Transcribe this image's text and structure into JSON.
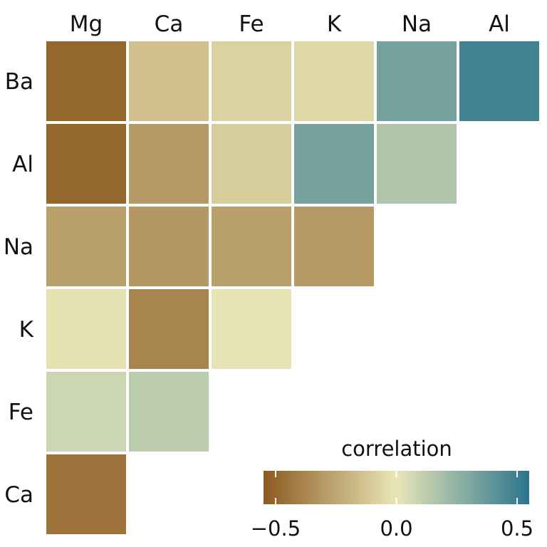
{
  "chart_data": {
    "type": "heatmap",
    "title": "",
    "columns": [
      "Mg",
      "Ca",
      "Fe",
      "K",
      "Na",
      "Al"
    ],
    "rows": [
      "Ba",
      "Al",
      "Na",
      "K",
      "Fe",
      "Ca"
    ],
    "layout": "lower-triangle",
    "cells": [
      {
        "row": "Ba",
        "col": "Mg",
        "value": -0.5
      },
      {
        "row": "Ba",
        "col": "Ca",
        "value": -0.15
      },
      {
        "row": "Ba",
        "col": "Fe",
        "value": -0.08
      },
      {
        "row": "Ba",
        "col": "K",
        "value": -0.06
      },
      {
        "row": "Ba",
        "col": "Na",
        "value": 0.33
      },
      {
        "row": "Ba",
        "col": "Al",
        "value": 0.48
      },
      {
        "row": "Al",
        "col": "Mg",
        "value": -0.5
      },
      {
        "row": "Al",
        "col": "Ca",
        "value": -0.3
      },
      {
        "row": "Al",
        "col": "Fe",
        "value": -0.1
      },
      {
        "row": "Al",
        "col": "K",
        "value": 0.33
      },
      {
        "row": "Al",
        "col": "Na",
        "value": 0.16
      },
      {
        "row": "Na",
        "col": "Mg",
        "value": -0.28
      },
      {
        "row": "Na",
        "col": "Ca",
        "value": -0.31
      },
      {
        "row": "Na",
        "col": "Fe",
        "value": -0.28
      },
      {
        "row": "Na",
        "col": "K",
        "value": -0.3
      },
      {
        "row": "K",
        "col": "Mg",
        "value": -0.02
      },
      {
        "row": "K",
        "col": "Ca",
        "value": -0.38
      },
      {
        "row": "K",
        "col": "Fe",
        "value": -0.01
      },
      {
        "row": "Fe",
        "col": "Mg",
        "value": 0.08
      },
      {
        "row": "Fe",
        "col": "Ca",
        "value": 0.13
      },
      {
        "row": "Ca",
        "col": "Mg",
        "value": -0.45
      }
    ],
    "legend": {
      "title": "correlation",
      "placement": "bottom-right",
      "min": -0.55,
      "max": 0.55,
      "ticks": [
        -0.5,
        0.0,
        0.5
      ],
      "tick_labels": [
        "−0.5",
        "0.0",
        "0.5"
      ]
    },
    "colors": {
      "negative": "#8c5a1f",
      "neutral": "#e8e6b8",
      "positive": "#2a758d"
    }
  }
}
